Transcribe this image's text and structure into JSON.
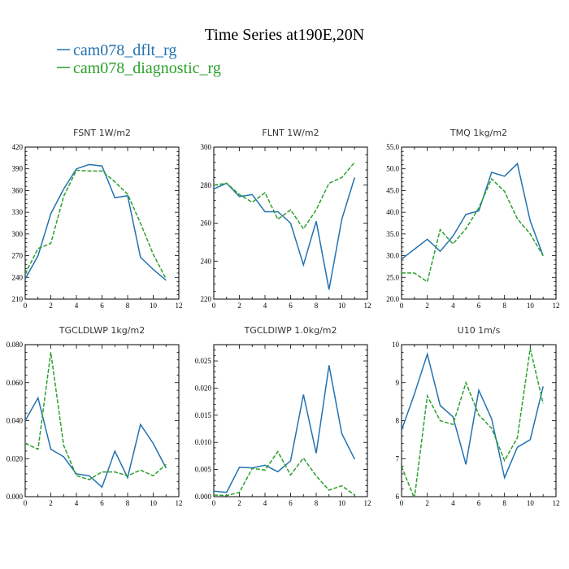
{
  "title": "Time Series at190E,20N",
  "legend": [
    {
      "label": "cam078_dflt_rg",
      "color": "#2372b0",
      "dash": "solid"
    },
    {
      "label": "cam078_diagnostic_rg",
      "color": "#2ca02c",
      "dash": "dashed"
    }
  ],
  "chart_data": [
    {
      "type": "line",
      "title": "FSNT   1W/m2",
      "xlim": [
        0,
        12
      ],
      "ylim": [
        210,
        420
      ],
      "xticks": [
        0,
        2,
        4,
        6,
        8,
        10,
        12
      ],
      "yticks": [
        210,
        240,
        270,
        300,
        330,
        360,
        390,
        420
      ],
      "ytick_labels": [
        "210",
        "240",
        "270",
        "300",
        "330",
        "360",
        "390",
        "420"
      ],
      "x": [
        0,
        1,
        2,
        3,
        4,
        5,
        6,
        7,
        8,
        9,
        10,
        11
      ],
      "series": [
        {
          "name": "cam078_dflt_rg",
          "values": [
            238,
            270,
            328,
            362,
            390,
            396,
            394,
            350,
            353,
            268,
            251,
            236
          ]
        },
        {
          "name": "cam078_diagnostic_rg",
          "values": [
            245,
            280,
            287,
            352,
            388,
            387,
            387,
            372,
            355,
            315,
            272,
            238
          ]
        }
      ]
    },
    {
      "type": "line",
      "title": "FLNT   1W/m2",
      "xlim": [
        0,
        12
      ],
      "ylim": [
        220,
        300
      ],
      "xticks": [
        0,
        2,
        4,
        6,
        8,
        10,
        12
      ],
      "yticks": [
        220,
        240,
        260,
        280,
        300
      ],
      "ytick_labels": [
        "220",
        "240",
        "260",
        "280",
        "300"
      ],
      "x": [
        0,
        1,
        2,
        3,
        4,
        5,
        6,
        7,
        8,
        9,
        10,
        11
      ],
      "series": [
        {
          "name": "cam078_dflt_rg",
          "values": [
            278,
            281,
            274,
            275,
            266,
            266,
            260,
            238,
            261,
            225,
            262,
            284
          ]
        },
        {
          "name": "cam078_diagnostic_rg",
          "values": [
            280,
            281,
            275,
            271,
            276,
            262,
            267,
            257,
            267,
            281,
            284,
            292
          ]
        }
      ]
    },
    {
      "type": "line",
      "title": "TMQ   1kg/m2",
      "xlim": [
        0,
        12
      ],
      "ylim": [
        20,
        55
      ],
      "xticks": [
        0,
        2,
        4,
        6,
        8,
        10,
        12
      ],
      "yticks": [
        20,
        25,
        30,
        35,
        40,
        45,
        50,
        55
      ],
      "ytick_labels": [
        "20.0",
        "25.0",
        "30.0",
        "35.0",
        "40.0",
        "45.0",
        "50.0",
        "55.0"
      ],
      "x": [
        0,
        1,
        2,
        3,
        4,
        5,
        6,
        7,
        8,
        9,
        10,
        11
      ],
      "series": [
        {
          "name": "cam078_dflt_rg",
          "values": [
            29.2,
            31.5,
            33.8,
            31.0,
            34.5,
            39.5,
            40.3,
            49.2,
            48.3,
            51.2,
            38.0,
            30.0
          ]
        },
        {
          "name": "cam078_diagnostic_rg",
          "values": [
            26.0,
            26.0,
            24.0,
            36.0,
            32.7,
            36.2,
            41.0,
            47.7,
            44.8,
            38.5,
            35.0,
            30.0
          ]
        }
      ]
    },
    {
      "type": "line",
      "title": "TGCLDLWP   1kg/m2",
      "xlim": [
        0,
        12
      ],
      "ylim": [
        0,
        0.08
      ],
      "xticks": [
        0,
        2,
        4,
        6,
        8,
        10,
        12
      ],
      "yticks": [
        0,
        0.02,
        0.04,
        0.06,
        0.08
      ],
      "ytick_labels": [
        "0.000",
        "0.020",
        "0.040",
        "0.060",
        "0.080"
      ],
      "x": [
        0,
        1,
        2,
        3,
        4,
        5,
        6,
        7,
        8,
        9,
        10,
        11
      ],
      "series": [
        {
          "name": "cam078_dflt_rg",
          "values": [
            0.04,
            0.052,
            0.025,
            0.021,
            0.012,
            0.011,
            0.005,
            0.024,
            0.01,
            0.038,
            0.028,
            0.015
          ]
        },
        {
          "name": "cam078_diagnostic_rg",
          "values": [
            0.028,
            0.025,
            0.076,
            0.027,
            0.011,
            0.009,
            0.013,
            0.013,
            0.011,
            0.014,
            0.011,
            0.017
          ]
        }
      ]
    },
    {
      "type": "line",
      "title": "TGCLDIWP   1.0kg/m2",
      "xlim": [
        0,
        12
      ],
      "ylim": [
        0,
        0.028
      ],
      "xticks": [
        0,
        2,
        4,
        6,
        8,
        10,
        12
      ],
      "yticks": [
        0,
        0.005,
        0.01,
        0.015,
        0.02,
        0.025
      ],
      "ytick_labels": [
        "0.000",
        "0.005",
        "0.010",
        "0.015",
        "0.020",
        "0.025"
      ],
      "x": [
        0,
        1,
        2,
        3,
        4,
        5,
        6,
        7,
        8,
        9,
        10,
        11
      ],
      "series": [
        {
          "name": "cam078_dflt_rg",
          "values": [
            0.001,
            0.0008,
            0.0054,
            0.0053,
            0.0058,
            0.0046,
            0.0066,
            0.0188,
            0.008,
            0.0242,
            0.0116,
            0.0069
          ]
        },
        {
          "name": "cam078_diagnostic_rg",
          "values": [
            0.0003,
            0.0002,
            0.0008,
            0.0052,
            0.0049,
            0.0083,
            0.004,
            0.0071,
            0.0038,
            0.0012,
            0.002,
            0.0003
          ]
        }
      ]
    },
    {
      "type": "line",
      "title": "U10   1m/s",
      "xlim": [
        0,
        12
      ],
      "ylim": [
        6,
        10
      ],
      "xticks": [
        0,
        2,
        4,
        6,
        8,
        10,
        12
      ],
      "yticks": [
        6,
        7,
        8,
        9,
        10
      ],
      "ytick_labels": [
        "6",
        "7",
        "8",
        "9",
        "10"
      ],
      "x": [
        0,
        1,
        2,
        3,
        4,
        5,
        6,
        7,
        8,
        9,
        10,
        11
      ],
      "series": [
        {
          "name": "cam078_dflt_rg",
          "values": [
            7.75,
            8.7,
            9.75,
            8.4,
            8.1,
            6.85,
            8.8,
            8.05,
            6.5,
            7.3,
            7.5,
            8.9
          ]
        },
        {
          "name": "cam078_diagnostic_rg",
          "values": [
            6.8,
            5.95,
            8.65,
            8.0,
            7.9,
            9.0,
            8.15,
            7.8,
            6.95,
            7.55,
            9.9,
            8.45
          ]
        }
      ]
    }
  ]
}
